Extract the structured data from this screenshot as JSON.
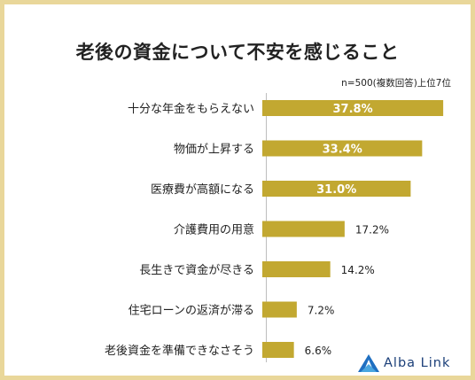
{
  "chart_data": {
    "type": "bar",
    "orientation": "horizontal",
    "title": "老後の資金について不安を感じること",
    "subtitle": "n=500(複数回答)上位7位",
    "categories": [
      "十分な年金をもらえない",
      "物価が上昇する",
      "医療費が高額になる",
      "介護費用の用意",
      "長生きで資金が尽きる",
      "住宅ローンの返済が滞る",
      "老後資金を準備できなさそう"
    ],
    "values": [
      37.8,
      33.4,
      31.0,
      17.2,
      14.2,
      7.2,
      6.6
    ],
    "value_labels": [
      "37.8%",
      "33.4%",
      "31.0%",
      "17.2%",
      "14.2%",
      "7.2%",
      "6.6%"
    ],
    "unit": "%",
    "bar_color": "#c2a831",
    "grid": false,
    "legend": "none"
  },
  "logo": {
    "text": "Alba Link",
    "icon": "alba-link-logo-icon",
    "color": "#1a3e78"
  }
}
